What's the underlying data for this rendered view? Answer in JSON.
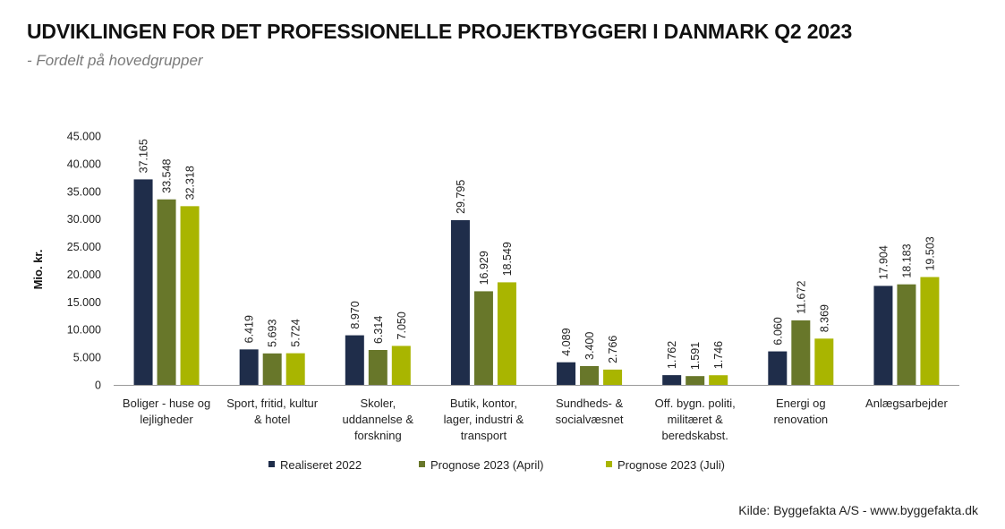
{
  "title": "UDVIKLINGEN FOR DET PROFESSIONELLE PROJEKTBYGGERI I DANMARK Q2 2023",
  "subtitle": "- Fordelt på hovedgrupper",
  "source": "Kilde: Byggefakta A/S - www.byggefakta.dk",
  "chart_data": {
    "type": "bar",
    "title": "UDVIKLINGEN FOR DET PROFESSIONELLE PROJEKTBYGGERI I DANMARK Q2 2023",
    "xlabel": "",
    "ylabel": "Mio. kr.",
    "ylim": [
      0,
      45000
    ],
    "yticks": [
      0,
      5000,
      10000,
      15000,
      20000,
      25000,
      30000,
      35000,
      40000,
      45000
    ],
    "ytick_labels": [
      "0",
      "5.000",
      "10.000",
      "15.000",
      "20.000",
      "25.000",
      "30.000",
      "35.000",
      "40.000",
      "45.000"
    ],
    "grid": false,
    "legend_position": "bottom",
    "categories": [
      [
        "Boliger - huse og",
        "lejligheder"
      ],
      [
        "Sport, fritid, kultur",
        "& hotel"
      ],
      [
        "Skoler,",
        "uddannelse &",
        "forskning"
      ],
      [
        "Butik, kontor,",
        "lager, industri &",
        "transport"
      ],
      [
        "Sundheds- &",
        "socialvæsnet"
      ],
      [
        "Off. bygn. politi,",
        "militæret &",
        "beredskabst."
      ],
      [
        "Energi og",
        "renovation"
      ],
      [
        "Anlægsarbejder"
      ]
    ],
    "series": [
      {
        "name": "Realiseret 2022",
        "color": "#1f2d4a",
        "values": [
          37165,
          6419,
          8970,
          29795,
          4089,
          1762,
          6060,
          17904
        ],
        "labels": [
          "37.165",
          "6.419",
          "8.970",
          "29.795",
          "4.089",
          "1.762",
          "6.060",
          "17.904"
        ]
      },
      {
        "name": "Prognose 2023 (April)",
        "color": "#68772a",
        "values": [
          33548,
          5693,
          6314,
          16929,
          3400,
          1591,
          11672,
          18183
        ],
        "labels": [
          "33.548",
          "5.693",
          "6.314",
          "16.929",
          "3.400",
          "1.591",
          "11.672",
          "18.183"
        ]
      },
      {
        "name": "Prognose 2023 (Juli)",
        "color": "#a9b500",
        "values": [
          32318,
          5724,
          7050,
          18549,
          2766,
          1746,
          8369,
          19503
        ],
        "labels": [
          "32.318",
          "5.724",
          "7.050",
          "18.549",
          "2.766",
          "1.746",
          "8.369",
          "19.503"
        ]
      }
    ]
  }
}
